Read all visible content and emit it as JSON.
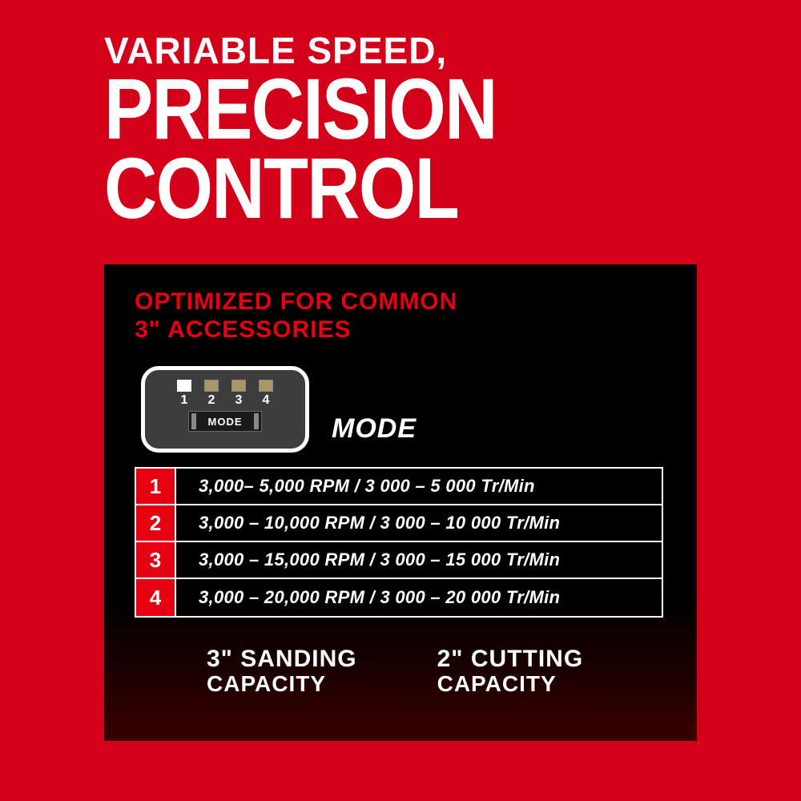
{
  "header": {
    "line1": "VARIABLE SPEED,",
    "line2": "PRECISION",
    "line3": "CONTROL"
  },
  "subhead": {
    "line1": "OPTIMIZED FOR COMMON",
    "line2": "3\" ACCESSORIES"
  },
  "selector": {
    "leds": [
      {
        "num": "1",
        "active": true
      },
      {
        "num": "2",
        "active": false
      },
      {
        "num": "3",
        "active": false
      },
      {
        "num": "4",
        "active": false
      }
    ],
    "switch_label": "MODE"
  },
  "mode_label": "MODE",
  "table": {
    "rows": [
      {
        "num": "1",
        "text": "3,000– 5,000 RPM / 3 000 – 5 000 Tr/Min"
      },
      {
        "num": "2",
        "text": "3,000 – 10,000 RPM / 3 000 – 10 000 Tr/Min"
      },
      {
        "num": "3",
        "text": "3,000 – 15,000 RPM / 3 000 – 15 000 Tr/Min"
      },
      {
        "num": "4",
        "text": "3,000 – 20,000 RPM / 3 000 – 20 000 Tr/Min"
      }
    ]
  },
  "capacities": {
    "sanding": {
      "big": "3\" SANDING",
      "small": "CAPACITY"
    },
    "cutting": {
      "big": "2\" CUTTING",
      "small": "CAPACITY"
    }
  },
  "colors": {
    "background": "#d4001a",
    "panel_top": "#000000",
    "panel_bottom": "#3a0000",
    "accent_red": "#e60012",
    "text_white": "#ffffff",
    "selector_body": "#3d3d3d",
    "led_off": "#a89868"
  }
}
